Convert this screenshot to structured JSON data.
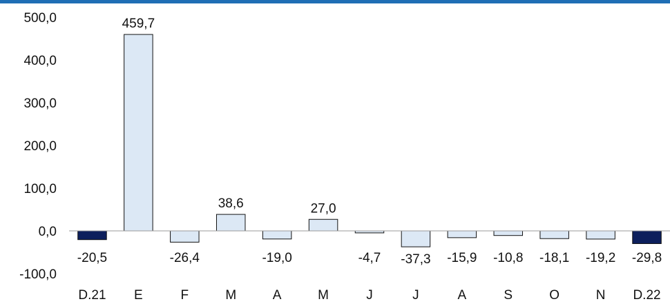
{
  "chart_data": {
    "type": "bar",
    "categories": [
      "D.21",
      "E",
      "F",
      "M",
      "A",
      "M",
      "J",
      "J",
      "A",
      "S",
      "O",
      "N",
      "D.22"
    ],
    "values": [
      -20.5,
      459.7,
      -26.4,
      38.6,
      -19.0,
      27.0,
      -4.7,
      -37.3,
      -15.9,
      -10.8,
      -18.1,
      -19.2,
      -29.8
    ],
    "value_labels": [
      "-20,5",
      "459,7",
      "-26,4",
      "38,6",
      "-19,0",
      "27,0",
      "-4,7",
      "-37,3",
      "-15,9",
      "-10,8",
      "-18,1",
      "-19,2",
      "-29,8"
    ],
    "highlight_indices": [
      0,
      12
    ],
    "ylim": [
      -100,
      500
    ],
    "yticks": [
      500,
      400,
      300,
      200,
      100,
      0,
      -100
    ],
    "ytick_labels": [
      "500,0",
      "400,0",
      "300,0",
      "200,0",
      "100,0",
      "0,0",
      "-100,0"
    ],
    "title": "",
    "xlabel": "",
    "ylabel": "",
    "grid": false,
    "colors": {
      "bar_fill": "#dce8f5",
      "highlight_fill": "#0d1f5c",
      "bar_edge": "#111111",
      "axis_line": "#9a9a9a",
      "top_rule": "#1f6eb5"
    }
  }
}
